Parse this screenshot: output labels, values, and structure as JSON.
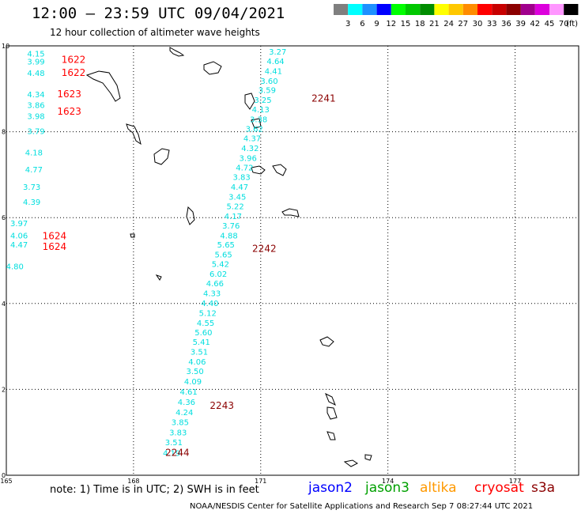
{
  "header": {
    "title": "12:00 – 23:59 UTC 09/04/2021",
    "subtitle": "12 hour collection of altimeter wave heights"
  },
  "color_scale": {
    "unit": "(ft)",
    "steps": [
      {
        "label": "3",
        "color": "#7f7f7f"
      },
      {
        "label": "6",
        "color": "#00ffff"
      },
      {
        "label": "9",
        "color": "#1e90ff"
      },
      {
        "label": "12",
        "color": "#0000ff"
      },
      {
        "label": "15",
        "color": "#00ff00"
      },
      {
        "label": "18",
        "color": "#00c800"
      },
      {
        "label": "21",
        "color": "#008c00"
      },
      {
        "label": "24",
        "color": "#ffff00"
      },
      {
        "label": "27",
        "color": "#ffc800"
      },
      {
        "label": "30",
        "color": "#ff8c00"
      },
      {
        "label": "33",
        "color": "#ff0000"
      },
      {
        "label": "36",
        "color": "#c80000"
      },
      {
        "label": "39",
        "color": "#8b0000"
      },
      {
        "label": "42",
        "color": "#a0008c"
      },
      {
        "label": "45",
        "color": "#dc00dc"
      },
      {
        "label": "70",
        "color": "#ff96ff"
      },
      {
        "label": "",
        "color": "#000000"
      }
    ]
  },
  "map": {
    "lon_ticks": [
      "165",
      "168",
      "171",
      "174",
      "177"
    ],
    "lat_ticks": [
      "0",
      "2",
      "4",
      "6",
      "8",
      "10"
    ],
    "lon_range": [
      165,
      178.5
    ],
    "lat_range": [
      0,
      10
    ]
  },
  "tracks": [
    {
      "satellite": "cryosat",
      "color": "#ff0000",
      "points": [
        {
          "lon": 165.7,
          "lat": 9.75,
          "swh": "4.15"
        },
        {
          "lon": 165.7,
          "lat": 9.57,
          "swh": "3.99"
        },
        {
          "lon": 165.7,
          "lat": 9.3,
          "swh": "4.48"
        },
        {
          "lon": 165.7,
          "lat": 8.8,
          "swh": "4.34"
        },
        {
          "lon": 165.7,
          "lat": 8.55,
          "swh": "3.86"
        },
        {
          "lon": 165.7,
          "lat": 8.3,
          "swh": "3.98"
        },
        {
          "lon": 165.7,
          "lat": 7.95,
          "swh": "3.79"
        },
        {
          "lon": 165.65,
          "lat": 7.45,
          "swh": "4.18"
        },
        {
          "lon": 165.65,
          "lat": 7.05,
          "swh": "4.77"
        },
        {
          "lon": 165.6,
          "lat": 6.65,
          "swh": "3.73"
        },
        {
          "lon": 165.6,
          "lat": 6.3,
          "swh": "4.39"
        },
        {
          "lon": 165.3,
          "lat": 5.8,
          "swh": "3.97"
        },
        {
          "lon": 165.3,
          "lat": 5.52,
          "swh": "4.06"
        },
        {
          "lon": 165.3,
          "lat": 5.3,
          "swh": "4.47"
        },
        {
          "lon": 165.2,
          "lat": 4.8,
          "swh": "4.80"
        }
      ],
      "labels": [
        {
          "lon": 166.3,
          "lat": 9.6,
          "text": "1622"
        },
        {
          "lon": 166.3,
          "lat": 9.3,
          "text": "1622"
        },
        {
          "lon": 166.2,
          "lat": 8.8,
          "text": "1623"
        },
        {
          "lon": 166.2,
          "lat": 8.4,
          "text": "1623"
        },
        {
          "lon": 165.85,
          "lat": 5.5,
          "text": "1624"
        },
        {
          "lon": 165.85,
          "lat": 5.25,
          "text": "1624"
        }
      ]
    },
    {
      "satellite": "s3a",
      "color": "#8b0000",
      "points": [
        {
          "lon": 171.4,
          "lat": 9.8,
          "swh": "3.27"
        },
        {
          "lon": 171.35,
          "lat": 9.58,
          "swh": "4.64"
        },
        {
          "lon": 171.3,
          "lat": 9.35,
          "swh": "4.41"
        },
        {
          "lon": 171.2,
          "lat": 9.12,
          "swh": "3.60"
        },
        {
          "lon": 171.15,
          "lat": 8.9,
          "swh": "3.59"
        },
        {
          "lon": 171.05,
          "lat": 8.67,
          "swh": "3.25"
        },
        {
          "lon": 171.0,
          "lat": 8.45,
          "swh": "4.13"
        },
        {
          "lon": 170.95,
          "lat": 8.22,
          "swh": "3.38"
        },
        {
          "lon": 170.85,
          "lat": 8.0,
          "swh": "3.62"
        },
        {
          "lon": 170.8,
          "lat": 7.78,
          "swh": "4.37"
        },
        {
          "lon": 170.75,
          "lat": 7.55,
          "swh": "4.32"
        },
        {
          "lon": 170.7,
          "lat": 7.32,
          "swh": "3.96"
        },
        {
          "lon": 170.62,
          "lat": 7.1,
          "swh": "4.72"
        },
        {
          "lon": 170.55,
          "lat": 6.88,
          "swh": "3.83"
        },
        {
          "lon": 170.5,
          "lat": 6.65,
          "swh": "4.47"
        },
        {
          "lon": 170.45,
          "lat": 6.42,
          "swh": "3.45"
        },
        {
          "lon": 170.4,
          "lat": 6.2,
          "swh": "5.22"
        },
        {
          "lon": 170.35,
          "lat": 5.97,
          "swh": "4.17"
        },
        {
          "lon": 170.3,
          "lat": 5.75,
          "swh": "3.76"
        },
        {
          "lon": 170.25,
          "lat": 5.52,
          "swh": "4.88"
        },
        {
          "lon": 170.18,
          "lat": 5.3,
          "swh": "5.65"
        },
        {
          "lon": 170.12,
          "lat": 5.07,
          "swh": "5.65"
        },
        {
          "lon": 170.05,
          "lat": 4.85,
          "swh": "5.42"
        },
        {
          "lon": 170.0,
          "lat": 4.62,
          "swh": "6.02"
        },
        {
          "lon": 169.92,
          "lat": 4.4,
          "swh": "4.66"
        },
        {
          "lon": 169.85,
          "lat": 4.17,
          "swh": "4.33"
        },
        {
          "lon": 169.8,
          "lat": 3.94,
          "swh": "4.40"
        },
        {
          "lon": 169.75,
          "lat": 3.71,
          "swh": "5.12"
        },
        {
          "lon": 169.7,
          "lat": 3.48,
          "swh": "4.55"
        },
        {
          "lon": 169.65,
          "lat": 3.26,
          "swh": "5.60"
        },
        {
          "lon": 169.6,
          "lat": 3.04,
          "swh": "5.41"
        },
        {
          "lon": 169.55,
          "lat": 2.81,
          "swh": "3.51"
        },
        {
          "lon": 169.5,
          "lat": 2.58,
          "swh": "4.06"
        },
        {
          "lon": 169.45,
          "lat": 2.36,
          "swh": "3.50"
        },
        {
          "lon": 169.4,
          "lat": 2.12,
          "swh": "4.09"
        },
        {
          "lon": 169.3,
          "lat": 1.88,
          "swh": "4.61"
        },
        {
          "lon": 169.25,
          "lat": 1.64,
          "swh": "4.36"
        },
        {
          "lon": 169.2,
          "lat": 1.4,
          "swh": "4.24"
        },
        {
          "lon": 169.1,
          "lat": 1.17,
          "swh": "3.85"
        },
        {
          "lon": 169.05,
          "lat": 0.93,
          "swh": "3.83"
        },
        {
          "lon": 168.95,
          "lat": 0.7,
          "swh": "3.51"
        },
        {
          "lon": 168.9,
          "lat": 0.45,
          "swh": "4.19"
        }
      ],
      "labels": [
        {
          "lon": 172.2,
          "lat": 8.7,
          "text": "2241"
        },
        {
          "lon": 170.8,
          "lat": 5.2,
          "text": "2242"
        },
        {
          "lon": 169.8,
          "lat": 1.55,
          "text": "2243"
        },
        {
          "lon": 168.75,
          "lat": 0.45,
          "text": "2244"
        }
      ]
    }
  ],
  "footer": {
    "note": "note: 1) Time is in UTC; 2) SWH is in feet",
    "satellites": [
      {
        "name": "jason2",
        "color": "#0000ff"
      },
      {
        "name": "jason3",
        "color": "#00a000"
      },
      {
        "name": "altika",
        "color": "#ff9900"
      },
      {
        "name": "cryosat",
        "color": "#ff0000"
      },
      {
        "name": "s3a",
        "color": "#8b0000"
      }
    ],
    "credit": "NOAA/NESDIS Center for Satellite Applications and Research   Sep  7 08:27:44 UTC 2021"
  }
}
